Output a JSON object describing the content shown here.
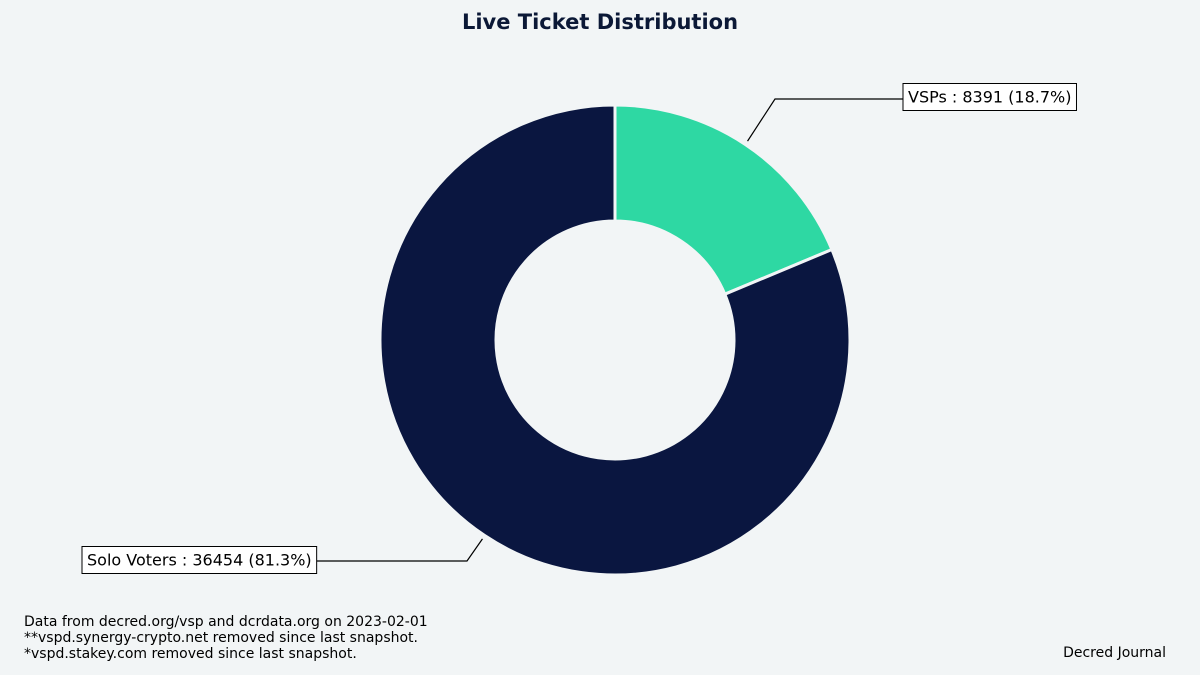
{
  "chart_data": {
    "type": "pie",
    "title": "Live Ticket Distribution",
    "slices": [
      {
        "name": "VSPs",
        "value": 8391,
        "percent": "18.7%",
        "color": "#2ed8a3",
        "label": "VSPs : 8391 (18.7%)"
      },
      {
        "name": "Solo Voters",
        "value": 36454,
        "percent": "81.3%",
        "color": "#0a1640",
        "label": "Solo Voters : 36454 (81.3%)"
      }
    ]
  },
  "footnote": {
    "line1": "Data from decred.org/vsp and dcrdata.org on 2023-02-01",
    "line2": "**vspd.synergy-crypto.net removed since last snapshot.",
    "line3": "*vspd.stakey.com removed since last snapshot."
  },
  "credit": "Decred Journal"
}
